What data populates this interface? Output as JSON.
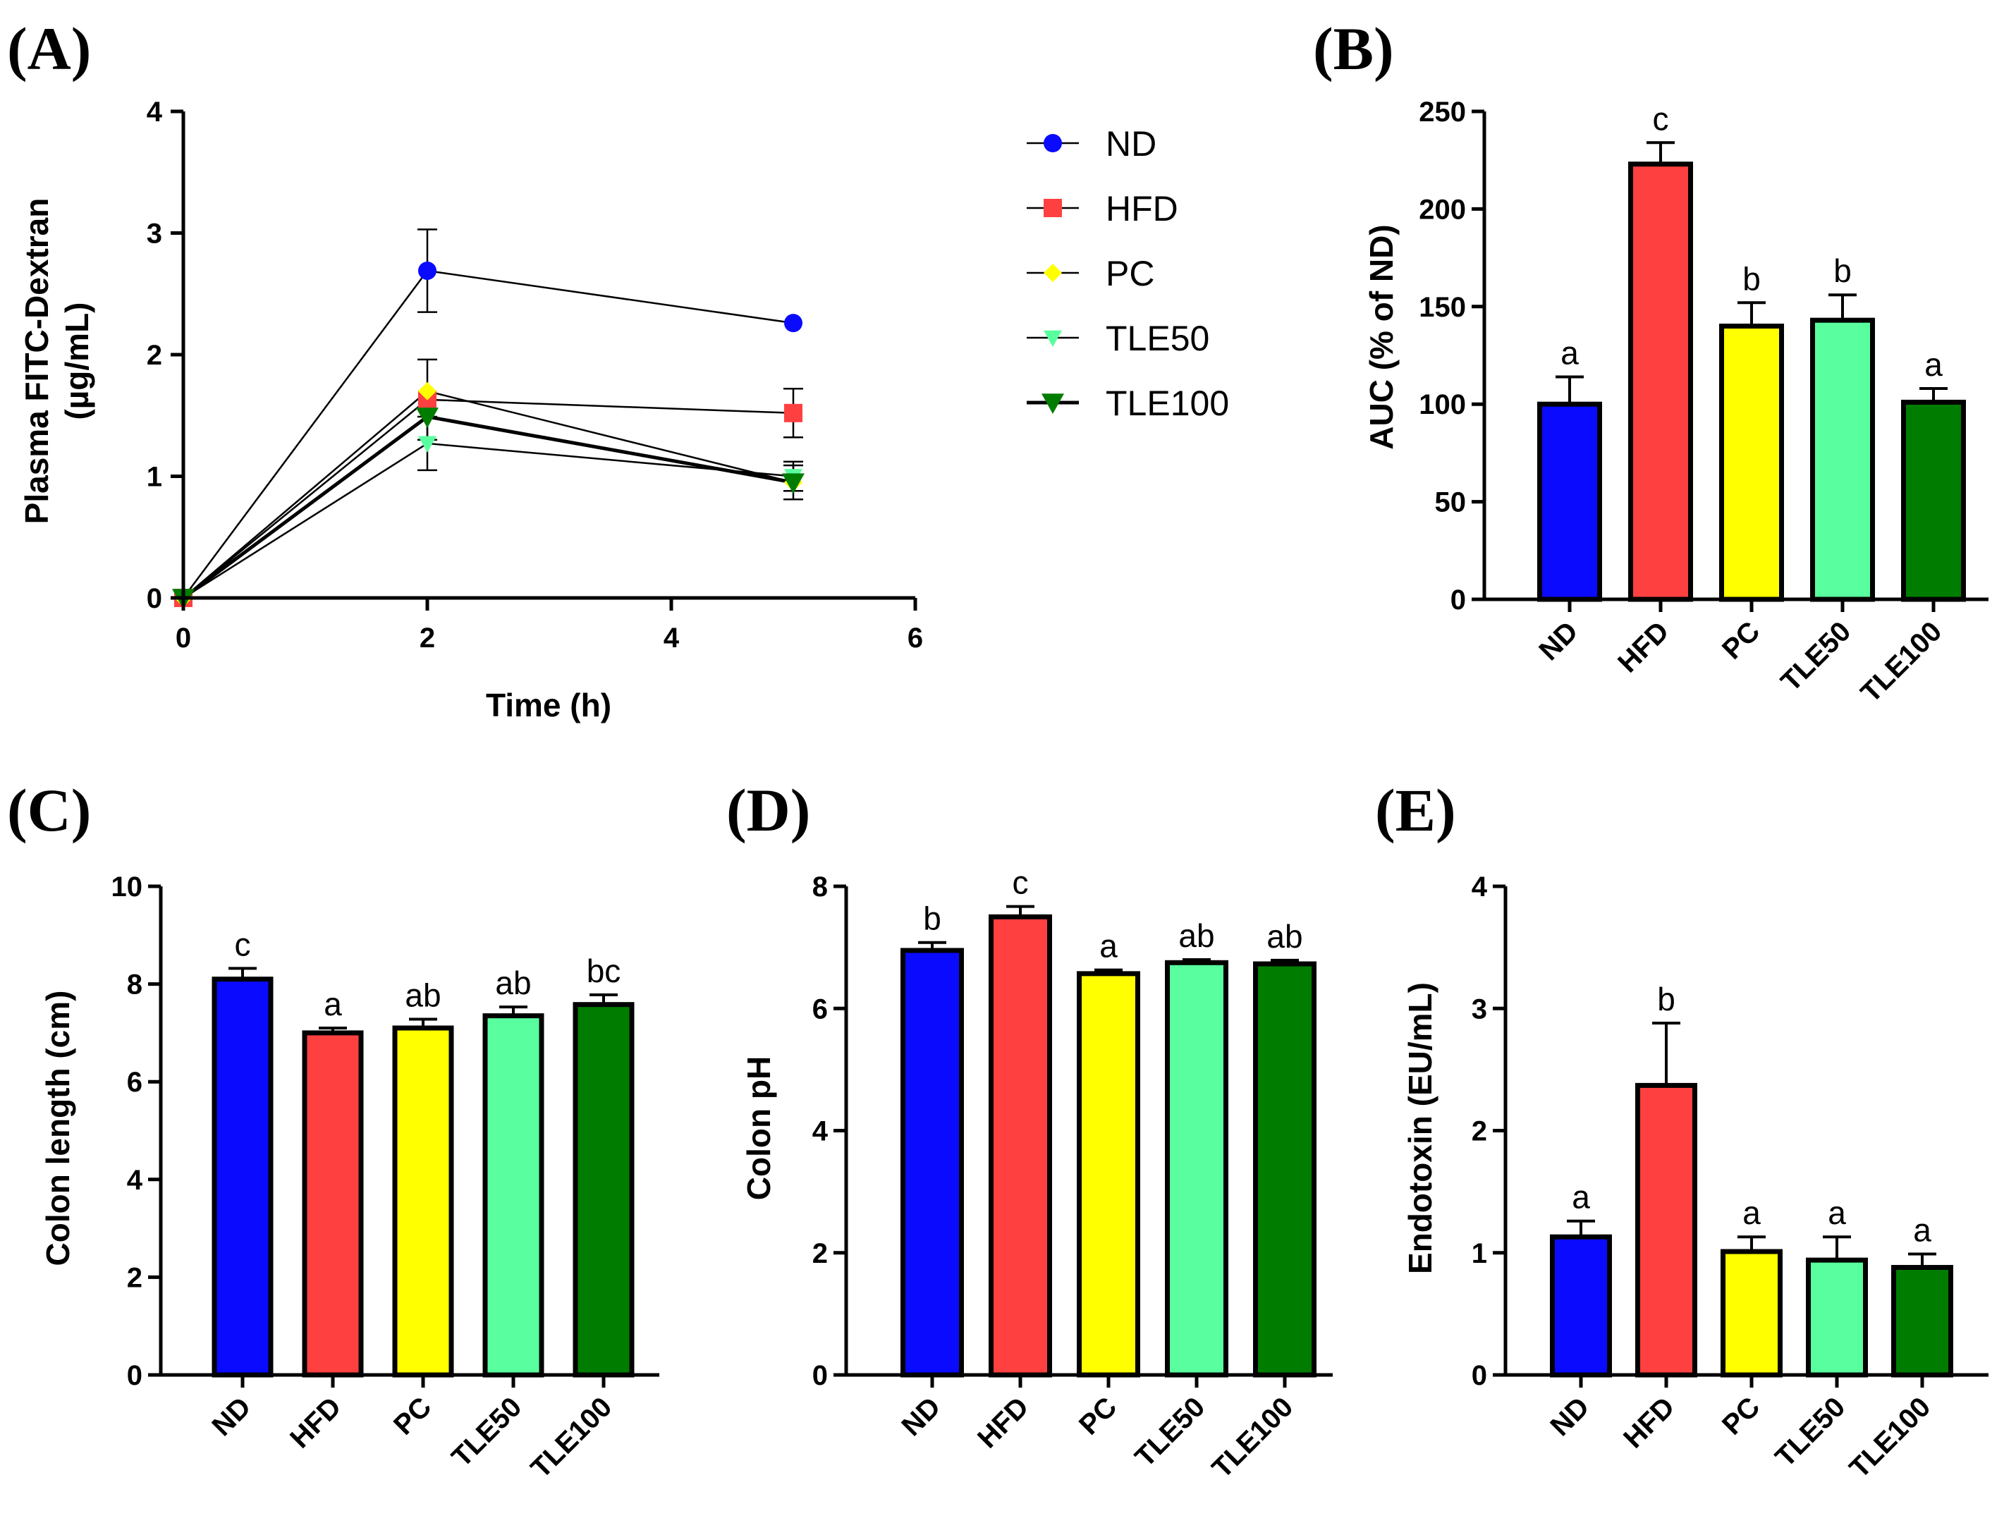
{
  "panels": {
    "A": "(A)",
    "B": "(B)",
    "C": "(C)",
    "D": "(D)",
    "E": "(E)"
  },
  "group_colors": {
    "ND": "#0a0aff",
    "HFD": "#ff4040",
    "PC": "#ffff00",
    "TLE50": "#59ff9e",
    "TLE100": "#007d00"
  },
  "chart_data": [
    {
      "id": "A",
      "type": "line",
      "xlabel": "Time (h)",
      "ylabel_line1": "Plasma FITC-Dextran",
      "ylabel_line2": "(µg/mL)",
      "xlim": [
        0,
        6
      ],
      "ylim": [
        0,
        4
      ],
      "xticks": [
        0,
        2,
        4,
        6
      ],
      "yticks": [
        0,
        1,
        2,
        3,
        4
      ],
      "x": [
        0,
        2,
        5
      ],
      "series": [
        {
          "name": "ND",
          "marker": "circle",
          "color": "#0a0aff",
          "values": [
            0,
            2.69,
            2.26
          ],
          "errors": [
            0,
            0.34,
            0
          ]
        },
        {
          "name": "HFD",
          "marker": "square",
          "color": "#ff4040",
          "values": [
            0,
            1.63,
            1.52
          ],
          "errors": [
            0,
            0.33,
            0.2
          ]
        },
        {
          "name": "PC",
          "marker": "diamond",
          "color": "#ffff00",
          "values": [
            0,
            1.7,
            0.95
          ],
          "errors": [
            0,
            0,
            0
          ]
        },
        {
          "name": "TLE50",
          "marker": "triangle-down",
          "color": "#59ff9e",
          "values": [
            0,
            1.27,
            1.0
          ],
          "errors": [
            0,
            0.22,
            0.12
          ]
        },
        {
          "name": "TLE100",
          "marker": "triangle-down",
          "color": "#007d00",
          "values": [
            0,
            1.49,
            0.95
          ],
          "errors": [
            0,
            0,
            0.14
          ]
        }
      ],
      "legend": [
        "ND",
        "HFD",
        "PC",
        "TLE50",
        "TLE100"
      ]
    },
    {
      "id": "B",
      "type": "bar",
      "ylabel": "AUC  (% of ND)",
      "ylim": [
        0,
        250
      ],
      "yticks": [
        0,
        50,
        100,
        150,
        200,
        250
      ],
      "categories": [
        "ND",
        "HFD",
        "PC",
        "TLE50",
        "TLE100"
      ],
      "values": [
        100,
        223,
        140,
        143,
        101
      ],
      "errors": [
        14,
        11,
        12,
        13,
        7
      ],
      "letters": [
        "a",
        "c",
        "b",
        "b",
        "a"
      ]
    },
    {
      "id": "C",
      "type": "bar",
      "ylabel": "Colon length (cm)",
      "ylim": [
        0,
        10
      ],
      "yticks": [
        0,
        2,
        4,
        6,
        8,
        10
      ],
      "categories": [
        "ND",
        "HFD",
        "PC",
        "TLE50",
        "TLE100"
      ],
      "values": [
        8.1,
        7.0,
        7.1,
        7.35,
        7.58
      ],
      "errors": [
        0.22,
        0.1,
        0.18,
        0.18,
        0.2
      ],
      "letters": [
        "c",
        "a",
        "ab",
        "ab",
        "bc"
      ]
    },
    {
      "id": "D",
      "type": "bar",
      "ylabel": "Colon pH",
      "ylim": [
        0,
        8
      ],
      "yticks": [
        0,
        2,
        4,
        6,
        8
      ],
      "categories": [
        "ND",
        "HFD",
        "PC",
        "TLE50",
        "TLE100"
      ],
      "values": [
        6.95,
        7.5,
        6.57,
        6.75,
        6.73
      ],
      "errors": [
        0.13,
        0.17,
        0.06,
        0.05,
        0.06
      ],
      "letters": [
        "b",
        "c",
        "a",
        "ab",
        "ab"
      ]
    },
    {
      "id": "E",
      "type": "bar",
      "ylabel": "Endotoxin (EU/mL)",
      "ylim": [
        0,
        4
      ],
      "yticks": [
        0,
        1,
        2,
        3,
        4
      ],
      "categories": [
        "ND",
        "HFD",
        "PC",
        "TLE50",
        "TLE100"
      ],
      "values": [
        1.13,
        2.37,
        1.01,
        0.94,
        0.88
      ],
      "errors": [
        0.13,
        0.51,
        0.12,
        0.19,
        0.11
      ],
      "letters": [
        "a",
        "b",
        "a",
        "a",
        "a"
      ]
    }
  ]
}
